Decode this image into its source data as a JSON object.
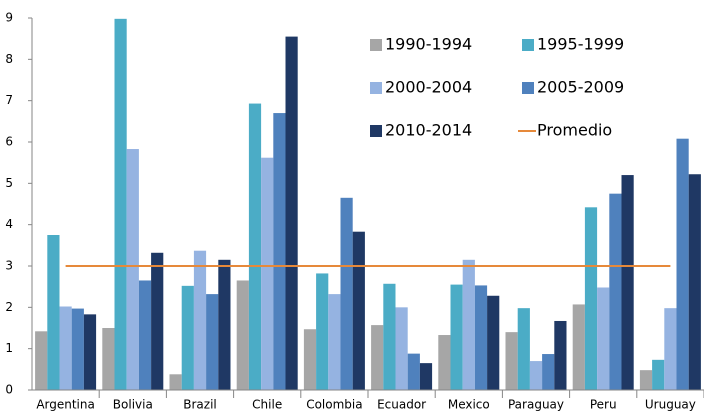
{
  "chart_data": {
    "type": "bar",
    "categories": [
      "Argentina",
      "Bolivia",
      "Brazil",
      "Chile",
      "Colombia",
      "Ecuador",
      "Mexico",
      "Paraguay",
      "Peru",
      "Uruguay"
    ],
    "series": [
      {
        "name": "1990-1994",
        "color": "#a6a6a6",
        "values": [
          1.42,
          1.5,
          0.38,
          2.65,
          1.47,
          1.57,
          1.33,
          1.4,
          2.07,
          0.48
        ]
      },
      {
        "name": "1995-1999",
        "color": "#4bacc6",
        "values": [
          3.75,
          8.98,
          2.52,
          6.93,
          2.82,
          2.57,
          2.55,
          1.98,
          4.42,
          0.73
        ]
      },
      {
        "name": "2000-2004",
        "color": "#95b3e1",
        "values": [
          2.02,
          5.83,
          3.37,
          5.62,
          2.32,
          2.0,
          3.15,
          0.7,
          2.48,
          1.98
        ]
      },
      {
        "name": "2005-2009",
        "color": "#4f81bd",
        "values": [
          1.97,
          2.65,
          2.32,
          6.7,
          4.65,
          0.88,
          2.53,
          0.87,
          4.75,
          6.08
        ]
      },
      {
        "name": "2010-2014",
        "color": "#1f3864",
        "values": [
          1.83,
          3.32,
          3.15,
          8.55,
          3.83,
          0.65,
          2.28,
          1.67,
          5.2,
          5.22
        ]
      },
      {
        "name": "Promedio",
        "color": "#e6893a",
        "type": "line",
        "values": [
          3,
          3,
          3,
          3,
          3,
          3,
          3,
          3,
          3,
          3
        ]
      }
    ],
    "ylim": [
      0,
      9
    ],
    "yticks": [
      0,
      1,
      2,
      3,
      4,
      5,
      6,
      7,
      8,
      9
    ],
    "grid": false
  }
}
